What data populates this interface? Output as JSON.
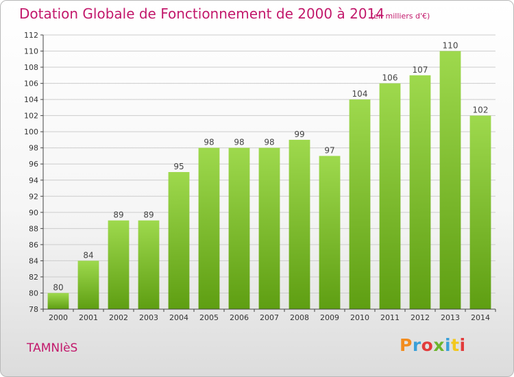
{
  "header": {
    "title": "Dotation Globale de Fonctionnement de 2000 à 2014",
    "unit": "(en milliers d'€)"
  },
  "footer": {
    "commune": "TAMNIèS",
    "brand_letters": [
      "P",
      "r",
      "o",
      "x",
      "i",
      "t",
      "i"
    ]
  },
  "chart_data": {
    "type": "bar",
    "title": "Dotation Globale de Fonctionnement de 2000 à 2014",
    "subtitle": "(en milliers d'€)",
    "categories": [
      "2000",
      "2001",
      "2002",
      "2003",
      "2004",
      "2005",
      "2006",
      "2007",
      "2008",
      "2009",
      "2010",
      "2011",
      "2012",
      "2013",
      "2014"
    ],
    "values": [
      80,
      84,
      89,
      89,
      95,
      98,
      98,
      98,
      99,
      97,
      104,
      106,
      107,
      110,
      102
    ],
    "ylim": [
      78,
      112
    ],
    "yticks": [
      78,
      80,
      82,
      84,
      86,
      88,
      90,
      92,
      94,
      96,
      98,
      100,
      102,
      104,
      106,
      108,
      110,
      112
    ],
    "grid": true,
    "legend": "none",
    "colors": {
      "bar_top": "#9ed94d",
      "bar_bottom": "#5e9e12",
      "grid": "#cccccc",
      "axis": "#444444"
    }
  }
}
